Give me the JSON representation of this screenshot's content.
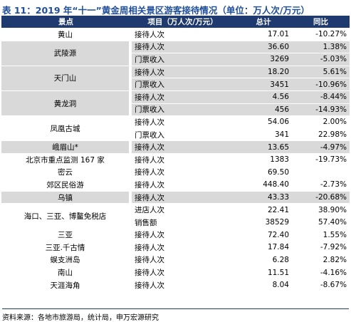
{
  "header": {
    "title": "表 11：2019 年“十一”黄金周相关景区游客接待情况（单位：万人次/万元）"
  },
  "table": {
    "columns": [
      "景点",
      "项目（万人次/万元）",
      "总计",
      "同比"
    ],
    "rows": [
      {
        "spot": "黄山",
        "shade": false,
        "items": [
          [
            "接待人次",
            "17.01",
            "-10.27%"
          ]
        ]
      },
      {
        "spot": "武陵源",
        "shade": true,
        "items": [
          [
            "接待人次",
            "36.60",
            "1.38%"
          ],
          [
            "门票收入",
            "3269",
            "-5.03%"
          ]
        ]
      },
      {
        "spot": "天门山",
        "shade": true,
        "items": [
          [
            "接待人次",
            "18.20",
            "5.61%"
          ],
          [
            "门票收入",
            "3451",
            "-10.96%"
          ]
        ]
      },
      {
        "spot": "黄龙洞",
        "shade": true,
        "items": [
          [
            "接待人次",
            "4.56",
            "-8.44%"
          ],
          [
            "门票收入",
            "456",
            "-14.93%"
          ]
        ]
      },
      {
        "spot": "凤凰古城",
        "shade": false,
        "items": [
          [
            "接待人次",
            "54.06",
            "2.00%"
          ],
          [
            "门票收入",
            "341",
            "22.98%"
          ]
        ]
      },
      {
        "spot": "峨眉山*",
        "shade": true,
        "items": [
          [
            "接待人次",
            "13.65",
            "-4.97%"
          ]
        ]
      },
      {
        "spot": "北京市重点监测 167 家",
        "shade": false,
        "items": [
          [
            "接待人次",
            "1383",
            "-19.73%"
          ]
        ]
      },
      {
        "spot": "密云",
        "shade": false,
        "items": [
          [
            "接待人次",
            "69.50",
            null
          ]
        ]
      },
      {
        "spot": "郊区民俗游",
        "shade": false,
        "items": [
          [
            "接待人次",
            "448.40",
            "-2.73%"
          ]
        ]
      },
      {
        "spot": "乌镇",
        "shade": true,
        "items": [
          [
            "接待人次",
            "43.33",
            "-20.68%"
          ]
        ]
      },
      {
        "spot": "海口、三亚、博鳌免税店",
        "shade": false,
        "items": [
          [
            "进店人次",
            "22.41",
            "38.90%"
          ],
          [
            "销售额",
            "38529",
            "57.40%"
          ]
        ]
      },
      {
        "spot": "三亚",
        "shade": false,
        "items": [
          [
            "接待人次",
            "72.40",
            "1.55%"
          ]
        ]
      },
      {
        "spot": "三亚.千古情",
        "shade": false,
        "items": [
          [
            "接待人次",
            "17.84",
            "-7.92%"
          ]
        ]
      },
      {
        "spot": "蜈支洲岛",
        "shade": false,
        "items": [
          [
            "接待人次",
            "6.28",
            "2.82%"
          ]
        ]
      },
      {
        "spot": "南山",
        "shade": false,
        "items": [
          [
            "接待人次",
            "11.51",
            "-4.16%"
          ]
        ]
      },
      {
        "spot": "天涯海角",
        "shade": false,
        "items": [
          [
            "接待人次",
            "8.04",
            "-8.67%"
          ]
        ]
      }
    ]
  },
  "footer": {
    "source": "资料来源：各地市旅游局，统计局，申万宏源研究"
  }
}
